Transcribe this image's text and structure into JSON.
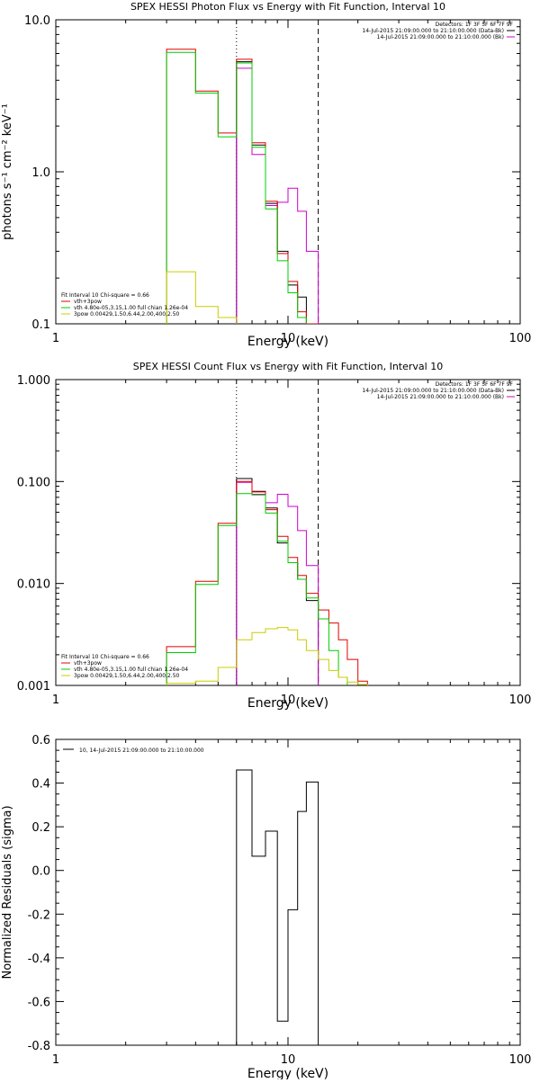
{
  "chart_data": [
    {
      "type": "line",
      "title": "SPEX HESSI Photon Flux vs Energy with Fit Function, Interval 10",
      "xlabel": "Energy (keV)",
      "ylabel": "photons s⁻¹ cm⁻² keV⁻¹",
      "xscale": "log",
      "yscale": "log",
      "xlim": [
        1,
        100
      ],
      "ylim": [
        0.1,
        10
      ],
      "xticks": [
        {
          "value": 1,
          "label": "1"
        },
        {
          "value": 10,
          "label": "10"
        },
        {
          "value": 100,
          "label": "100"
        }
      ],
      "yticks": [
        {
          "value": 0.1,
          "label": "0.1"
        },
        {
          "value": 1,
          "label": "1.0"
        },
        {
          "value": 10,
          "label": "10.0"
        }
      ],
      "vlines": [
        {
          "x": 6.0,
          "style": "dotted"
        },
        {
          "x": 13.5,
          "style": "dashed"
        }
      ],
      "legend_top": {
        "header": "Detectors: 1F 3F 5F 6F 7F 9F",
        "entries": [
          {
            "label": "14-Jul-2015 21:09:00.000 to 21:10:00.000 (Data-Bk)",
            "color": "#000000"
          },
          {
            "label": "14-Jul-2015 21:09:00.000 to 21:10:00.000 (Bk)",
            "color": "#cc00cc"
          }
        ]
      },
      "legend_bottom": {
        "header": "Fit Interval 10   Chi-square = 0.66",
        "entries": [
          {
            "label": "vth+3pow",
            "color": "#e00000"
          },
          {
            "label": "vth 4.80e-05,3.15,1.00  full chian 1.26e-04",
            "color": "#00cc00"
          },
          {
            "label": "3pow 0.00429,1.50,6.44,2.00,400,2.50",
            "color": "#cccc00"
          }
        ]
      },
      "series": [
        {
          "color": "#000000",
          "edges": [
            6.0,
            7.0,
            8.0,
            9.0,
            10.0,
            11.0,
            12.0,
            13.5
          ],
          "values": [
            5.3,
            1.5,
            0.62,
            0.3,
            0.18,
            0.15,
            0.1
          ]
        },
        {
          "color": "#cc00cc",
          "edges": [
            6.0,
            7.0,
            8.0,
            9.0,
            10.0,
            11.0,
            12.0,
            13.5
          ],
          "values": [
            4.8,
            1.3,
            0.6,
            0.63,
            0.78,
            0.55,
            0.3
          ]
        },
        {
          "color": "#e00000",
          "edges": [
            3.0,
            4.0,
            5.0,
            6.0,
            7.0,
            8.0,
            9.0,
            10.0,
            11.0,
            12.0,
            13.5
          ],
          "values": [
            6.4,
            3.4,
            1.8,
            5.5,
            1.55,
            0.64,
            0.29,
            0.19,
            0.12,
            0.1
          ]
        },
        {
          "color": "#00cc00",
          "edges": [
            3.0,
            4.0,
            5.0,
            6.0,
            7.0,
            8.0,
            9.0,
            10.0,
            11.0,
            12.0
          ],
          "values": [
            6.1,
            3.3,
            1.7,
            5.2,
            1.45,
            0.57,
            0.26,
            0.16,
            0.11
          ]
        },
        {
          "color": "#cccc00",
          "edges": [
            3.0,
            4.0,
            5.0,
            6.0
          ],
          "values": [
            0.22,
            0.13,
            0.11
          ]
        }
      ]
    },
    {
      "type": "line",
      "title": "SPEX HESSI Count Flux vs Energy with Fit Function, Interval 10",
      "xlabel": "Energy (keV)",
      "ylabel": "",
      "xscale": "log",
      "yscale": "log",
      "xlim": [
        1,
        100
      ],
      "ylim": [
        0.001,
        1
      ],
      "xticks": [
        {
          "value": 1,
          "label": "1"
        },
        {
          "value": 10,
          "label": "10"
        },
        {
          "value": 100,
          "label": "100"
        }
      ],
      "yticks": [
        {
          "value": 0.001,
          "label": "0.001"
        },
        {
          "value": 0.01,
          "label": "0.010"
        },
        {
          "value": 0.1,
          "label": "0.100"
        },
        {
          "value": 1,
          "label": "1.000"
        }
      ],
      "vlines": [
        {
          "x": 6.0,
          "style": "dotted"
        },
        {
          "x": 13.5,
          "style": "dashed"
        }
      ],
      "legend_top": {
        "header": "Detectors: 1F 3F 5F 6F 7F 9F",
        "entries": [
          {
            "label": "14-Jul-2015 21:09:00.000 to 21:10:00.000 (Data-Bk)",
            "color": "#000000"
          },
          {
            "label": "14-Jul-2015 21:09:00.000 to 21:10:00.000 (Bk)",
            "color": "#cc00cc"
          }
        ]
      },
      "legend_bottom": {
        "header": "Fit Interval 10   Chi-square = 0.66",
        "entries": [
          {
            "label": "vth+3pow",
            "color": "#e00000"
          },
          {
            "label": "vth 4.80e-05,3.15,1.00  full chian 1.26e-04",
            "color": "#00cc00"
          },
          {
            "label": "3pow 0.00429,1.50,6.44,2.00,400,2.50",
            "color": "#cccc00"
          }
        ]
      },
      "series": [
        {
          "color": "#000000",
          "edges": [
            6.0,
            7.0,
            8.0,
            9.0,
            10.0,
            11.0,
            12.0,
            13.5
          ],
          "values": [
            0.107,
            0.08,
            0.055,
            0.025,
            0.016,
            0.011,
            0.0068
          ]
        },
        {
          "color": "#cc00cc",
          "edges": [
            6.0,
            7.0,
            8.0,
            9.0,
            10.0,
            11.0,
            12.0,
            13.5
          ],
          "values": [
            0.098,
            0.075,
            0.062,
            0.075,
            0.057,
            0.033,
            0.015
          ]
        },
        {
          "color": "#e00000",
          "edges": [
            3.0,
            4.0,
            5.0,
            6.0,
            7.0,
            8.0,
            9.0,
            10.0,
            11.0,
            12.0,
            13.5,
            15.0,
            16.5,
            18.0,
            20.0,
            22.0
          ],
          "values": [
            0.0024,
            0.0105,
            0.039,
            0.1,
            0.079,
            0.053,
            0.029,
            0.018,
            0.012,
            0.008,
            0.0055,
            0.0041,
            0.0028,
            0.0018,
            0.0011
          ]
        },
        {
          "color": "#00cc00",
          "edges": [
            3.0,
            4.0,
            5.0,
            6.0,
            7.0,
            8.0,
            9.0,
            10.0,
            11.0,
            12.0,
            13.5,
            15.0,
            16.5,
            18.0
          ],
          "values": [
            0.0021,
            0.0098,
            0.037,
            0.076,
            0.074,
            0.049,
            0.026,
            0.016,
            0.011,
            0.0072,
            0.0045,
            0.0022,
            0.0012
          ]
        },
        {
          "color": "#cccc00",
          "edges": [
            3.0,
            4.0,
            5.0,
            6.0,
            7.0,
            8.0,
            9.0,
            10.0,
            11.0,
            12.0,
            13.5,
            15.0,
            16.5,
            18.0,
            20.0,
            22.0
          ],
          "values": [
            0.00105,
            0.0011,
            0.0015,
            0.0028,
            0.0033,
            0.0036,
            0.0037,
            0.0035,
            0.0028,
            0.0022,
            0.0018,
            0.0014,
            0.0012,
            0.00108,
            0.00102
          ]
        }
      ]
    },
    {
      "type": "line",
      "title": "",
      "xlabel": "Energy (keV)",
      "ylabel": "Normalized Residuals (sigma)",
      "xscale": "log",
      "yscale": "linear",
      "xlim": [
        1,
        100
      ],
      "ylim": [
        -0.8,
        0.6
      ],
      "xticks": [
        {
          "value": 1,
          "label": "1"
        },
        {
          "value": 10,
          "label": "10"
        },
        {
          "value": 100,
          "label": "100"
        }
      ],
      "yticks": [
        {
          "value": -0.8,
          "label": "-0.8"
        },
        {
          "value": -0.6,
          "label": "-0.6"
        },
        {
          "value": -0.4,
          "label": "-0.4"
        },
        {
          "value": -0.2,
          "label": "-0.2"
        },
        {
          "value": 0.0,
          "label": "0.0"
        },
        {
          "value": 0.2,
          "label": "0.2"
        },
        {
          "value": 0.4,
          "label": "0.4"
        },
        {
          "value": 0.6,
          "label": "0.6"
        }
      ],
      "vlines": [],
      "legend_top": {
        "header": "",
        "entries": [
          {
            "label": "10, 14-Jul-2015 21:09:00.000 to 21:10:00.000",
            "color": "#000000"
          }
        ]
      },
      "legend_bottom": {
        "header": "",
        "entries": []
      },
      "series": [
        {
          "color": "#000000",
          "edges": [
            6.0,
            7.0,
            8.0,
            9.0,
            10.0,
            11.0,
            12.0,
            13.5
          ],
          "values": [
            0.46,
            0.065,
            0.18,
            -0.69,
            -0.18,
            0.27,
            0.405
          ]
        }
      ]
    }
  ]
}
